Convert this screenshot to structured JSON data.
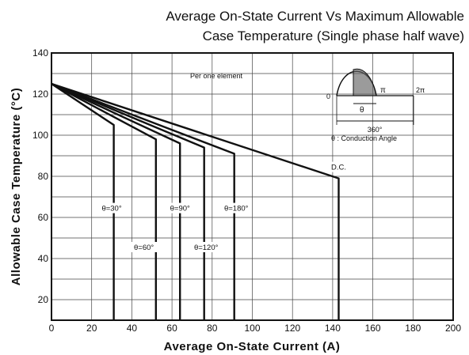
{
  "chart_data": {
    "type": "line",
    "title_line1": "Average On-State Current Vs Maximum Allowable",
    "title_line2": "Case Temperature (Single phase half wave)",
    "xlabel": "Average On-State Current (A)",
    "ylabel": "Allowable Case Temperature (°C)",
    "xlim": [
      0,
      200
    ],
    "ylim": [
      10,
      140
    ],
    "x_ticks": [
      0,
      20,
      40,
      60,
      80,
      100,
      120,
      140,
      160,
      180,
      200
    ],
    "y_ticks": [
      20,
      40,
      60,
      80,
      100,
      120,
      140
    ],
    "grid": true,
    "annotation": "Per one element",
    "inset": {
      "theta_label": "θ",
      "pi_label": "π",
      "two_pi_label": "2π",
      "zero_label": "0",
      "span_label": "360°",
      "note": "θ : Conduction Angle"
    },
    "series": [
      {
        "name": "θ=30°",
        "x": [
          0,
          31,
          31
        ],
        "y": [
          125,
          105,
          10
        ]
      },
      {
        "name": "θ=60°",
        "x": [
          0,
          52,
          52
        ],
        "y": [
          125,
          98,
          10
        ]
      },
      {
        "name": "θ=90°",
        "x": [
          0,
          64,
          64
        ],
        "y": [
          125,
          96,
          10
        ]
      },
      {
        "name": "θ=120°",
        "x": [
          0,
          76,
          76
        ],
        "y": [
          125,
          94,
          10
        ]
      },
      {
        "name": "θ=180°",
        "x": [
          0,
          91,
          91
        ],
        "y": [
          125,
          91,
          10
        ]
      },
      {
        "name": "D.C.",
        "x": [
          0,
          143,
          143
        ],
        "y": [
          125,
          79,
          10
        ]
      }
    ]
  }
}
